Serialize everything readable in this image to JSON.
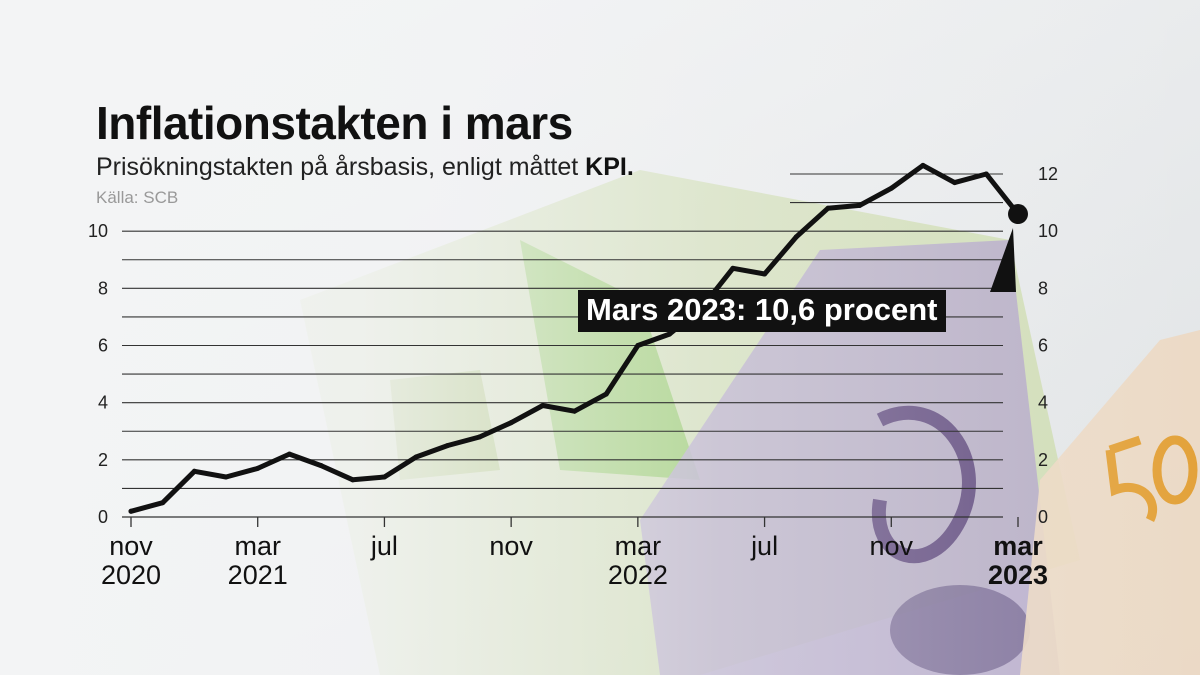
{
  "title": "Inflationstakten i mars",
  "subtitle": {
    "text": "Prisökningstakten på årsbasis, enligt måttet",
    "emphasis": "KPI."
  },
  "source": "Källa: SCB",
  "annotation": "Mars 2023: 10,6 procent",
  "colors": {
    "line": "#111111",
    "grid": "#333333",
    "annotation_bg": "#111111",
    "annotation_text": "#ffffff"
  },
  "chart_data": {
    "type": "line",
    "title": "Inflationstakten i mars",
    "subtitle": "Prisökningstakten på årsbasis, enligt måttet KPI.",
    "ylim": [
      0,
      12
    ],
    "yticks_left": [
      0,
      2,
      4,
      6,
      8,
      10
    ],
    "yticks_right": [
      0,
      2,
      4,
      6,
      8,
      10,
      12
    ],
    "grid": true,
    "x_ticks": [
      {
        "index": 0,
        "line1": "nov",
        "line2": "2020",
        "bold": false
      },
      {
        "index": 4,
        "line1": "mar",
        "line2": "2021",
        "bold": false
      },
      {
        "index": 8,
        "line1": "jul",
        "line2": "",
        "bold": false
      },
      {
        "index": 12,
        "line1": "nov",
        "line2": "",
        "bold": false
      },
      {
        "index": 16,
        "line1": "mar",
        "line2": "2022",
        "bold": false
      },
      {
        "index": 20,
        "line1": "jul",
        "line2": "",
        "bold": false
      },
      {
        "index": 24,
        "line1": "nov",
        "line2": "",
        "bold": false
      },
      {
        "index": 28,
        "line1": "mar",
        "line2": "2023",
        "bold": true
      }
    ],
    "x": [
      "2020-11",
      "2020-12",
      "2021-01",
      "2021-02",
      "2021-03",
      "2021-04",
      "2021-05",
      "2021-06",
      "2021-07",
      "2021-08",
      "2021-09",
      "2021-10",
      "2021-11",
      "2021-12",
      "2022-01",
      "2022-02",
      "2022-03",
      "2022-04",
      "2022-05",
      "2022-06",
      "2022-07",
      "2022-08",
      "2022-09",
      "2022-10",
      "2022-11",
      "2022-12",
      "2023-01",
      "2023-02",
      "2023-03"
    ],
    "series": [
      {
        "values": [
          0.2,
          0.5,
          1.6,
          1.4,
          1.7,
          2.2,
          1.8,
          1.3,
          1.4,
          2.1,
          2.5,
          2.8,
          3.3,
          3.9,
          3.7,
          4.3,
          6.0,
          6.4,
          7.3,
          8.7,
          8.5,
          9.8,
          10.8,
          10.9,
          11.5,
          12.3,
          11.7,
          12.0,
          10.6
        ]
      }
    ],
    "highlight": {
      "x": "2023-03",
      "value": 10.6
    }
  }
}
